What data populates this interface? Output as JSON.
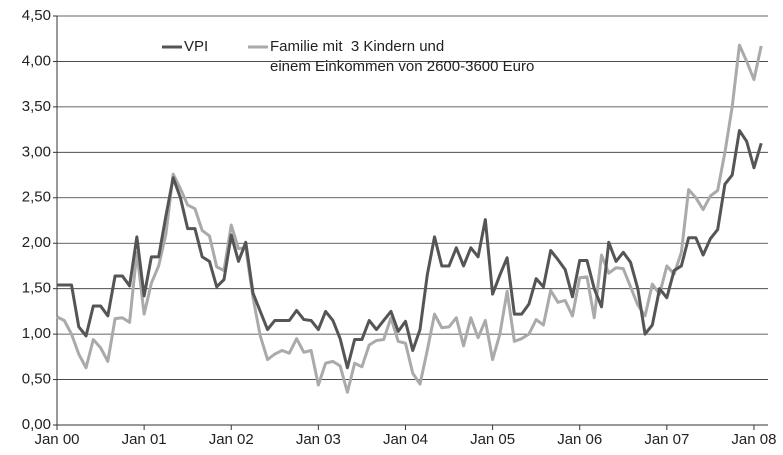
{
  "chart_data": {
    "type": "line",
    "categories": [
      "Jan 00",
      null,
      null,
      null,
      null,
      null,
      null,
      null,
      null,
      null,
      null,
      null,
      "Jan 01",
      null,
      null,
      null,
      null,
      null,
      null,
      null,
      null,
      null,
      null,
      null,
      "Jan 02",
      null,
      null,
      null,
      null,
      null,
      null,
      null,
      null,
      null,
      null,
      null,
      "Jan 03",
      null,
      null,
      null,
      null,
      null,
      null,
      null,
      null,
      null,
      null,
      null,
      "Jan 04",
      null,
      null,
      null,
      null,
      null,
      null,
      null,
      null,
      null,
      null,
      null,
      "Jan 05",
      null,
      null,
      null,
      null,
      null,
      null,
      null,
      null,
      null,
      null,
      null,
      "Jan 06",
      null,
      null,
      null,
      null,
      null,
      null,
      null,
      null,
      null,
      null,
      null,
      "Jan 07",
      null,
      null,
      null,
      null,
      null,
      null,
      null,
      null,
      null,
      null,
      null,
      "Jan 08",
      null
    ],
    "series": [
      {
        "name": "VPI",
        "color": "#555555",
        "values": [
          1.54,
          1.54,
          1.54,
          1.08,
          0.98,
          1.31,
          1.31,
          1.2,
          1.64,
          1.64,
          1.53,
          2.07,
          1.42,
          1.85,
          1.85,
          2.3,
          2.72,
          2.5,
          2.16,
          2.16,
          1.85,
          1.8,
          1.52,
          1.6,
          2.09,
          1.8,
          2.01,
          1.45,
          1.25,
          1.05,
          1.15,
          1.15,
          1.15,
          1.26,
          1.16,
          1.15,
          1.05,
          1.25,
          1.15,
          0.95,
          0.63,
          0.94,
          0.94,
          1.15,
          1.05,
          1.15,
          1.25,
          1.03,
          1.14,
          0.82,
          1.05,
          1.65,
          2.07,
          1.75,
          1.75,
          1.95,
          1.75,
          1.95,
          1.85,
          2.26,
          1.44,
          1.65,
          1.84,
          1.22,
          1.22,
          1.33,
          1.61,
          1.52,
          1.92,
          1.82,
          1.71,
          1.41,
          1.81,
          1.81,
          1.5,
          1.3,
          2.01,
          1.8,
          1.9,
          1.79,
          1.5,
          1.0,
          1.1,
          1.5,
          1.4,
          1.7,
          1.75,
          2.06,
          2.06,
          1.87,
          2.05,
          2.15,
          2.65,
          2.75,
          3.24,
          3.12,
          2.83,
          3.1
        ]
      },
      {
        "name": "Familie mit  3 Kindern und\neinem Einkommen von 2600-3600 Euro",
        "color": "#aaaaaa",
        "values": [
          1.19,
          1.15,
          1.0,
          0.78,
          0.63,
          0.94,
          0.85,
          0.7,
          1.17,
          1.18,
          1.13,
          1.9,
          1.22,
          1.56,
          1.75,
          2.1,
          2.76,
          2.6,
          2.42,
          2.38,
          2.14,
          2.08,
          1.74,
          1.7,
          2.2,
          1.94,
          1.95,
          1.4,
          0.98,
          0.72,
          0.78,
          0.82,
          0.79,
          0.95,
          0.8,
          0.82,
          0.44,
          0.68,
          0.7,
          0.65,
          0.36,
          0.68,
          0.64,
          0.88,
          0.93,
          0.94,
          1.18,
          0.92,
          0.9,
          0.57,
          0.45,
          0.82,
          1.22,
          1.07,
          1.08,
          1.18,
          0.87,
          1.18,
          0.96,
          1.15,
          0.72,
          1.0,
          1.47,
          0.92,
          0.95,
          1.0,
          1.16,
          1.1,
          1.48,
          1.35,
          1.37,
          1.2,
          1.62,
          1.63,
          1.18,
          1.87,
          1.67,
          1.73,
          1.72,
          1.52,
          1.32,
          1.2,
          1.55,
          1.44,
          1.75,
          1.66,
          1.9,
          2.59,
          2.5,
          2.37,
          2.52,
          2.58,
          3.0,
          3.5,
          4.18,
          4.0,
          3.8,
          4.17
        ]
      }
    ],
    "ylim": [
      0,
      4.5
    ],
    "yticks": [
      {
        "value": 0,
        "label": "0,00"
      },
      {
        "value": 0.5,
        "label": "0,50"
      },
      {
        "value": 1,
        "label": "1,00"
      },
      {
        "value": 1.5,
        "label": "1,50"
      },
      {
        "value": 2,
        "label": "2,00"
      },
      {
        "value": 2.5,
        "label": "2,50"
      },
      {
        "value": 3,
        "label": "3,00"
      },
      {
        "value": 3.5,
        "label": "3,50"
      },
      {
        "value": 4,
        "label": "4,00"
      },
      {
        "value": 4.5,
        "label": "4,50"
      }
    ],
    "grid": true
  }
}
